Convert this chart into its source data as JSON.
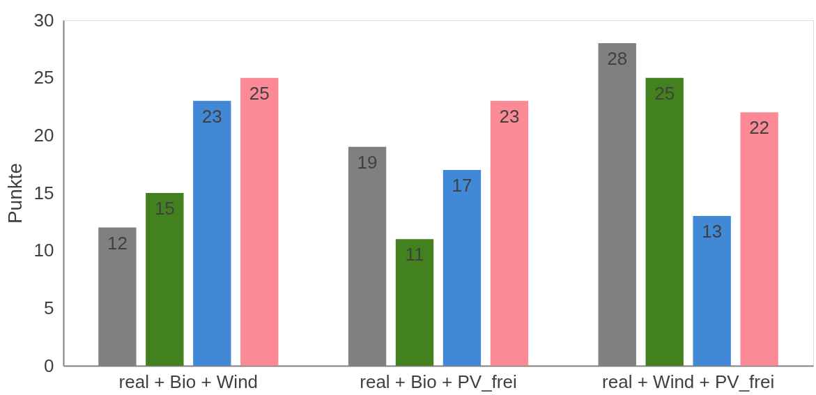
{
  "chart_data": {
    "type": "bar",
    "ylabel": "Punkte",
    "categories": [
      "real + Bio + Wind",
      "real + Bio + PV_frei",
      "real + Wind + PV_frei"
    ],
    "series": [
      {
        "color": "#808080",
        "values": [
          12,
          19,
          28
        ]
      },
      {
        "color": "#43801e",
        "values": [
          15,
          11,
          25
        ]
      },
      {
        "color": "#4189d6",
        "values": [
          23,
          17,
          13
        ]
      },
      {
        "color": "#fb8a96",
        "values": [
          25,
          23,
          22
        ]
      }
    ],
    "ylim": [
      0,
      30
    ],
    "yticks": [
      0,
      5,
      10,
      15,
      20,
      25,
      30
    ],
    "grid": false,
    "legend": false,
    "data_labels": true
  }
}
